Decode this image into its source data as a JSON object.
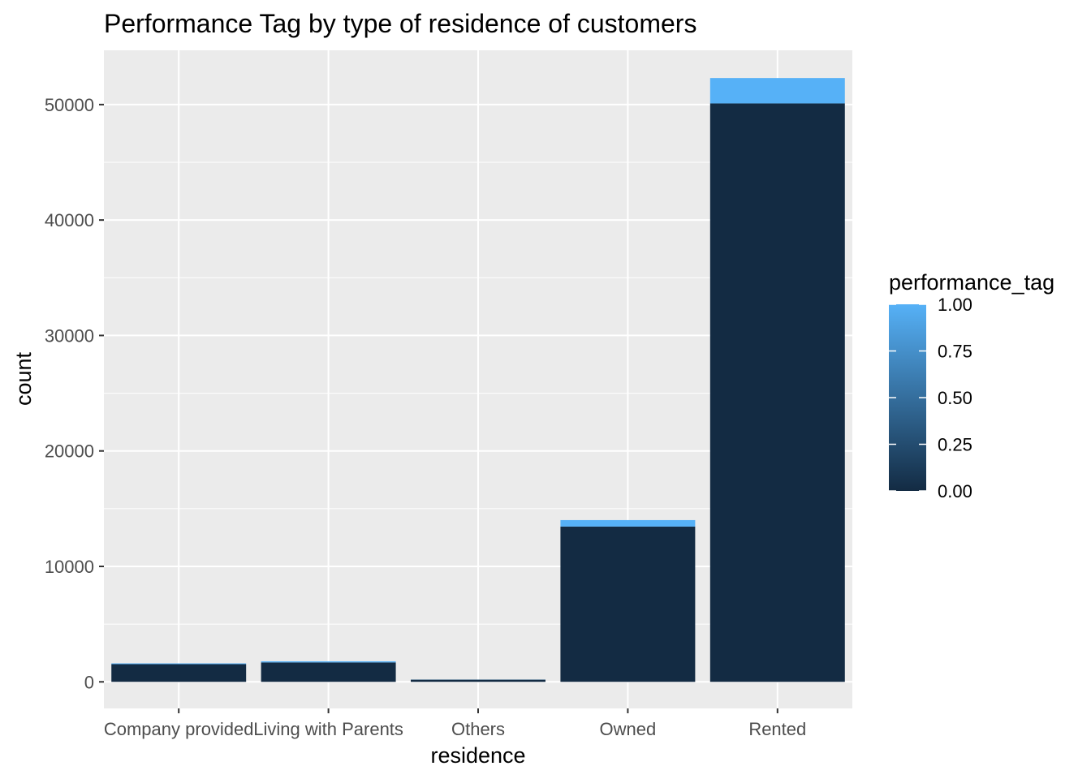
{
  "chart_data": {
    "type": "bar",
    "stacked": true,
    "title": "Performance Tag by type of residence of customers",
    "xlabel": "residence",
    "ylabel": "count",
    "categories": [
      "Company provided",
      "Living with Parents",
      "Others",
      "Owned",
      "Rented"
    ],
    "series": [
      {
        "name": "0.00",
        "values": [
          1530,
          1680,
          190,
          13450,
          50100
        ]
      },
      {
        "name": "1.00",
        "values": [
          70,
          100,
          10,
          560,
          2200
        ]
      }
    ],
    "ylim": [
      -2300,
      54700
    ],
    "yticks": [
      0,
      10000,
      20000,
      30000,
      40000,
      50000
    ],
    "ytick_labels": [
      "0",
      "10000",
      "20000",
      "30000",
      "40000",
      "50000"
    ],
    "grid": true,
    "legend": {
      "title": "performance_tag",
      "placement": "right",
      "type": "colorbar",
      "range": [
        0,
        1
      ],
      "ticks": [
        "1.00",
        "0.75",
        "0.50",
        "0.25",
        "0.00"
      ],
      "color_low": "#132B43",
      "color_high": "#56B1F7"
    },
    "colors": {
      "panel": "#EBEBEB",
      "grid": "#FFFFFF",
      "low": "#132B43",
      "high": "#56B1F7"
    }
  }
}
